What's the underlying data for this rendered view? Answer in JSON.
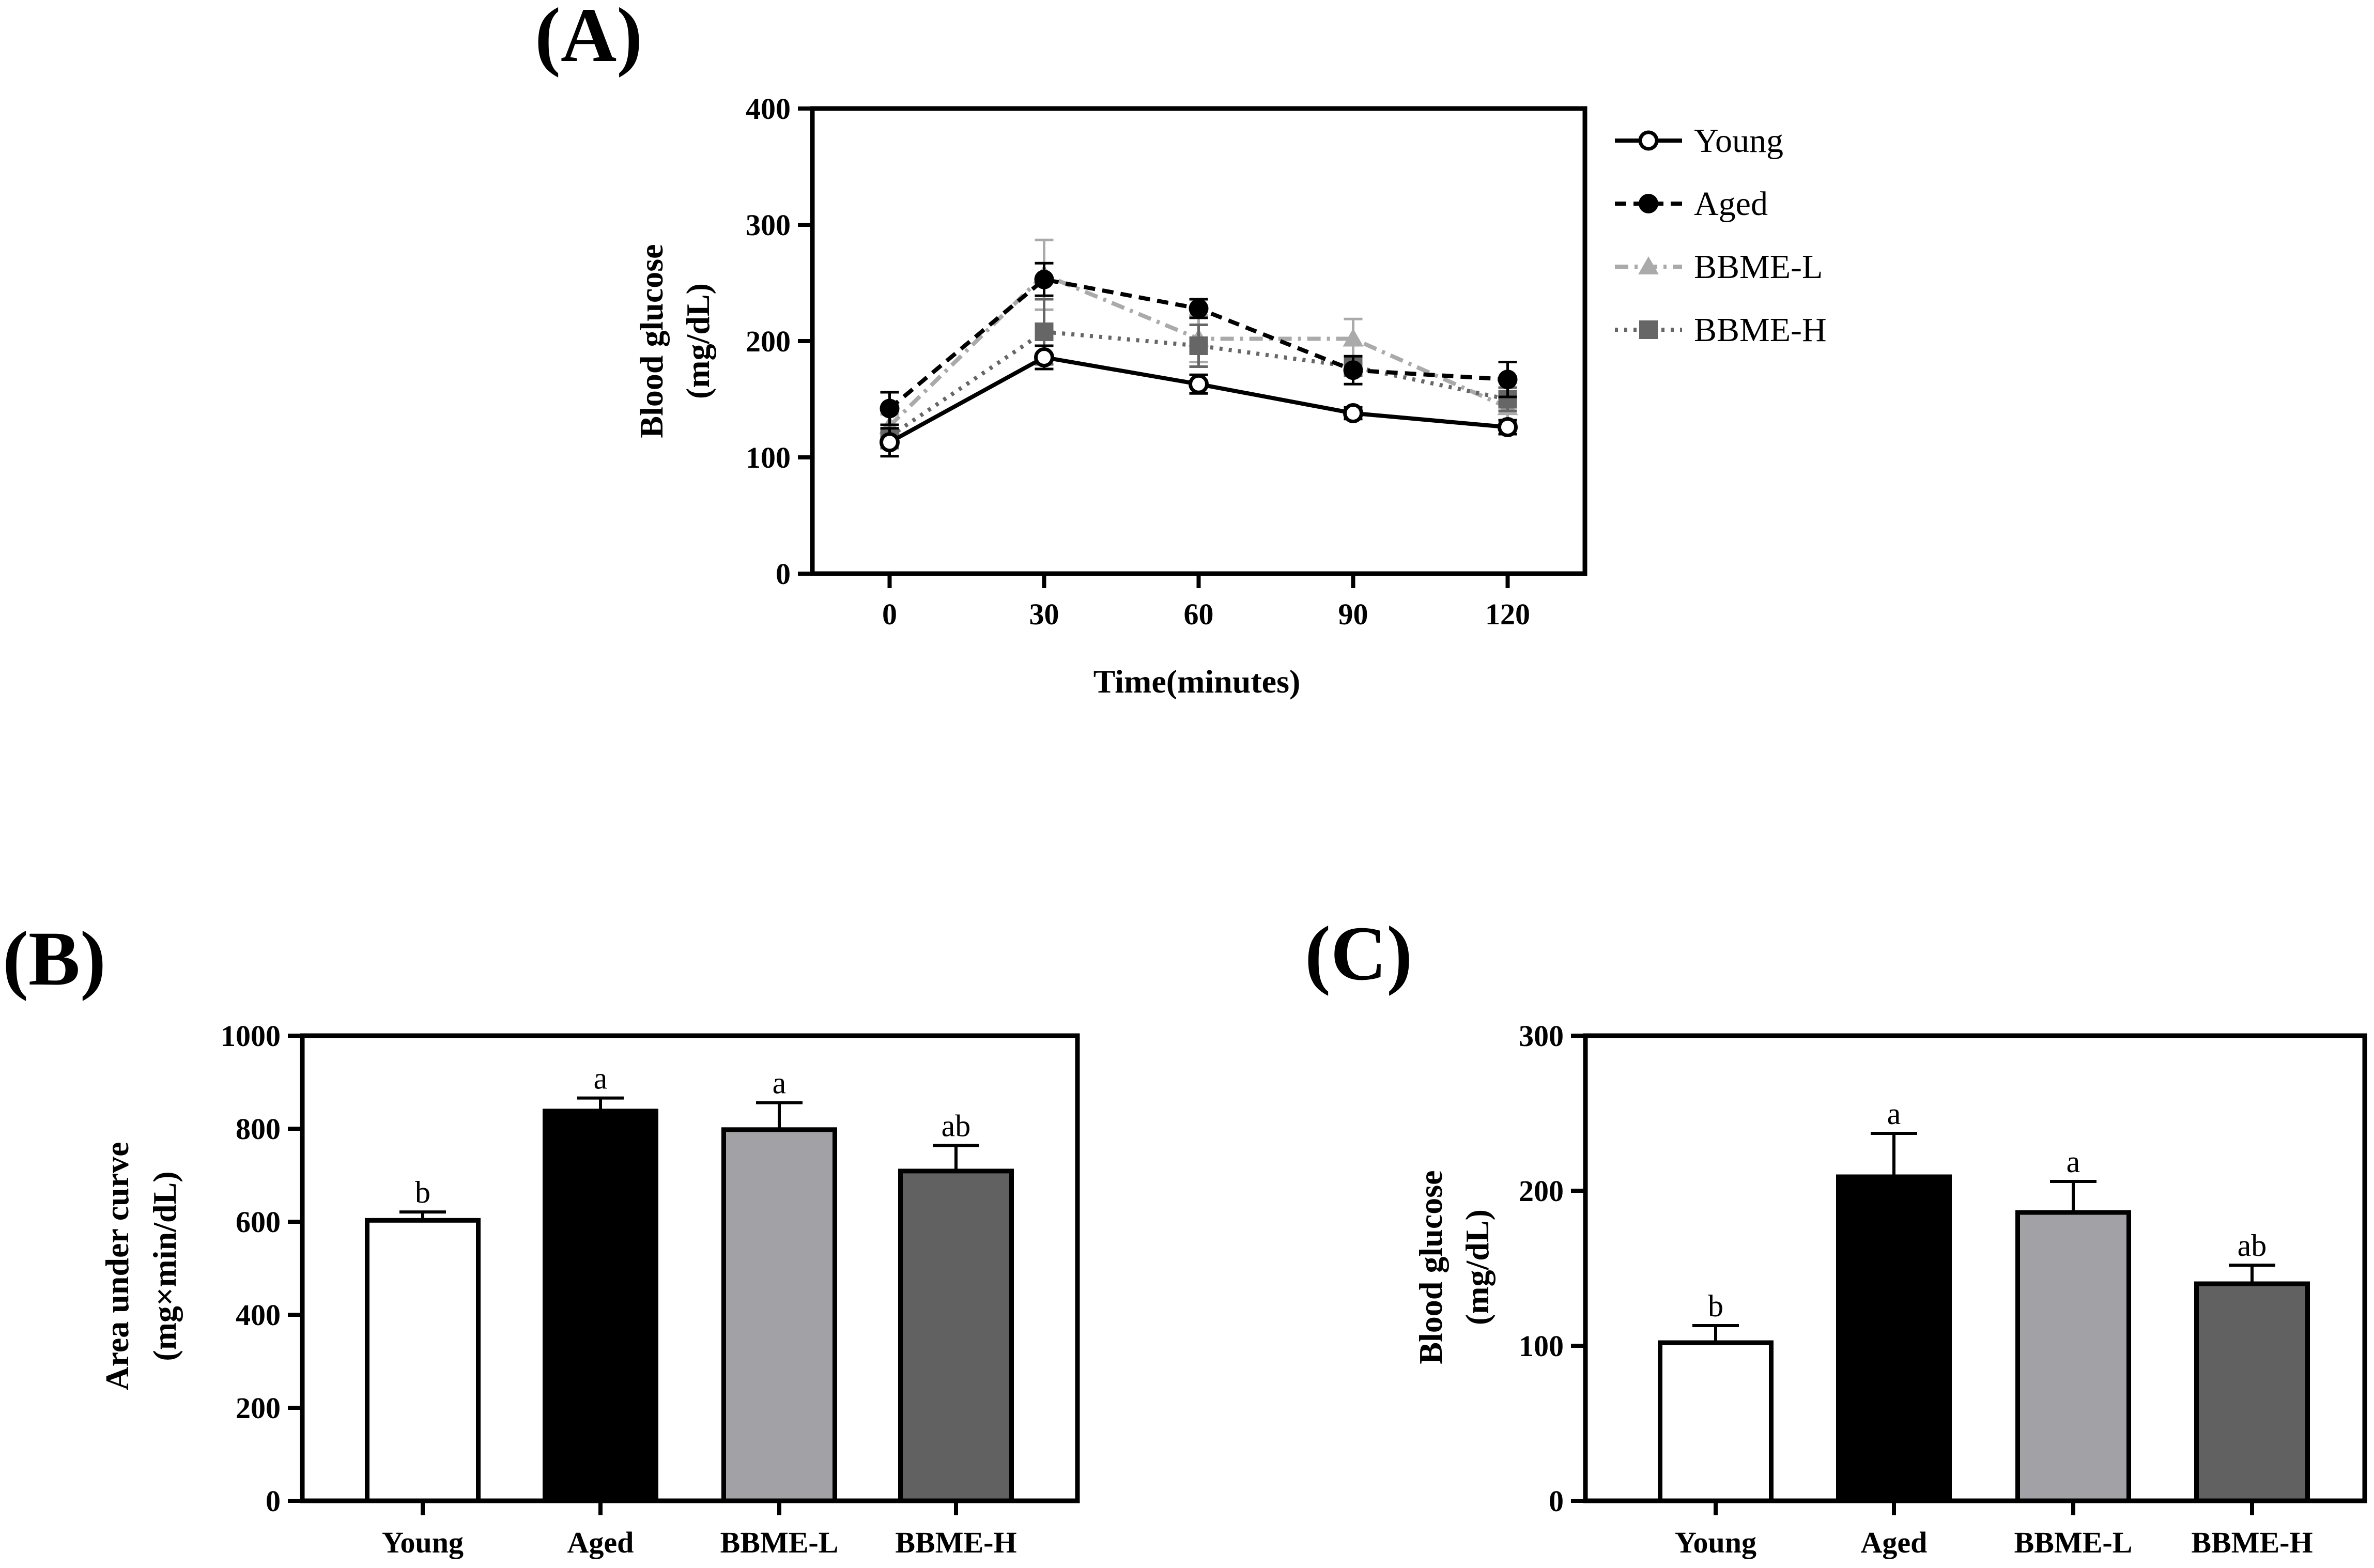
{
  "chart_data": [
    {
      "panel_label": "(A)",
      "type": "line",
      "title": "",
      "xlabel": "Time(minutes)",
      "ylabel": "Blood glucose",
      "ylabel_unit": "(mg/dL)",
      "x": [
        0,
        30,
        60,
        90,
        120
      ],
      "x_tick_labels": [
        "0",
        "30",
        "60",
        "90",
        "120"
      ],
      "xlim": [
        -15,
        135
      ],
      "ylim": [
        0,
        400
      ],
      "y_ticks": [
        0,
        100,
        200,
        300,
        400
      ],
      "y_tick_labels": [
        "0",
        "100",
        "200",
        "300",
        "400"
      ],
      "legend_position": "right",
      "series": [
        {
          "name": "Young",
          "marker": "open-circle",
          "line": "solid",
          "color": "#000000",
          "values": [
            113,
            186,
            163,
            138,
            126
          ],
          "errors": [
            12,
            10,
            8,
            5,
            6
          ]
        },
        {
          "name": "Aged",
          "marker": "filled-circle",
          "line": "dashed",
          "color": "#000000",
          "values": [
            142,
            253,
            228,
            175,
            167
          ],
          "errors": [
            14,
            14,
            8,
            12,
            15
          ]
        },
        {
          "name": "BBME-L",
          "marker": "triangle",
          "line": "dash-dot",
          "color": "#aaaaaa",
          "values": [
            127,
            257,
            202,
            202,
            143
          ],
          "errors": [
            10,
            30,
            20,
            17,
            12
          ]
        },
        {
          "name": "BBME-H",
          "marker": "square",
          "line": "dotted",
          "color": "#666666",
          "values": [
            118,
            208,
            196,
            178,
            150
          ],
          "errors": [
            10,
            28,
            18,
            8,
            10
          ]
        }
      ]
    },
    {
      "panel_label": "(B)",
      "type": "bar",
      "title": "",
      "xlabel": "",
      "ylabel": "Area under curve",
      "ylabel_unit": "(mg×min/dL)",
      "categories": [
        "Young",
        "Aged",
        "BBME-L",
        "BBME-H"
      ],
      "values": [
        603,
        838,
        798,
        709
      ],
      "errors": [
        18,
        28,
        58,
        55
      ],
      "significance": [
        "b",
        "a",
        "a",
        "ab"
      ],
      "colors": [
        "#ffffff",
        "#000000",
        "#a2a2a6",
        "#616161"
      ],
      "ylim": [
        0,
        1000
      ],
      "y_ticks": [
        0,
        200,
        400,
        600,
        800,
        1000
      ],
      "y_tick_labels": [
        "0",
        "200",
        "400",
        "600",
        "800",
        "1000"
      ]
    },
    {
      "panel_label": "(C)",
      "type": "bar",
      "title": "",
      "xlabel": "",
      "ylabel": "Blood glucose",
      "ylabel_unit": "(mg/dL)",
      "categories": [
        "Young",
        "Aged",
        "BBME-L",
        "BBME-H"
      ],
      "values": [
        102,
        209,
        186,
        140
      ],
      "errors": [
        11,
        28,
        20,
        12
      ],
      "significance": [
        "b",
        "a",
        "a",
        "ab"
      ],
      "colors": [
        "#ffffff",
        "#000000",
        "#a2a2a6",
        "#616161"
      ],
      "ylim": [
        0,
        300
      ],
      "y_ticks": [
        0,
        100,
        200,
        300
      ],
      "y_tick_labels": [
        "0",
        "100",
        "200",
        "300"
      ]
    }
  ]
}
